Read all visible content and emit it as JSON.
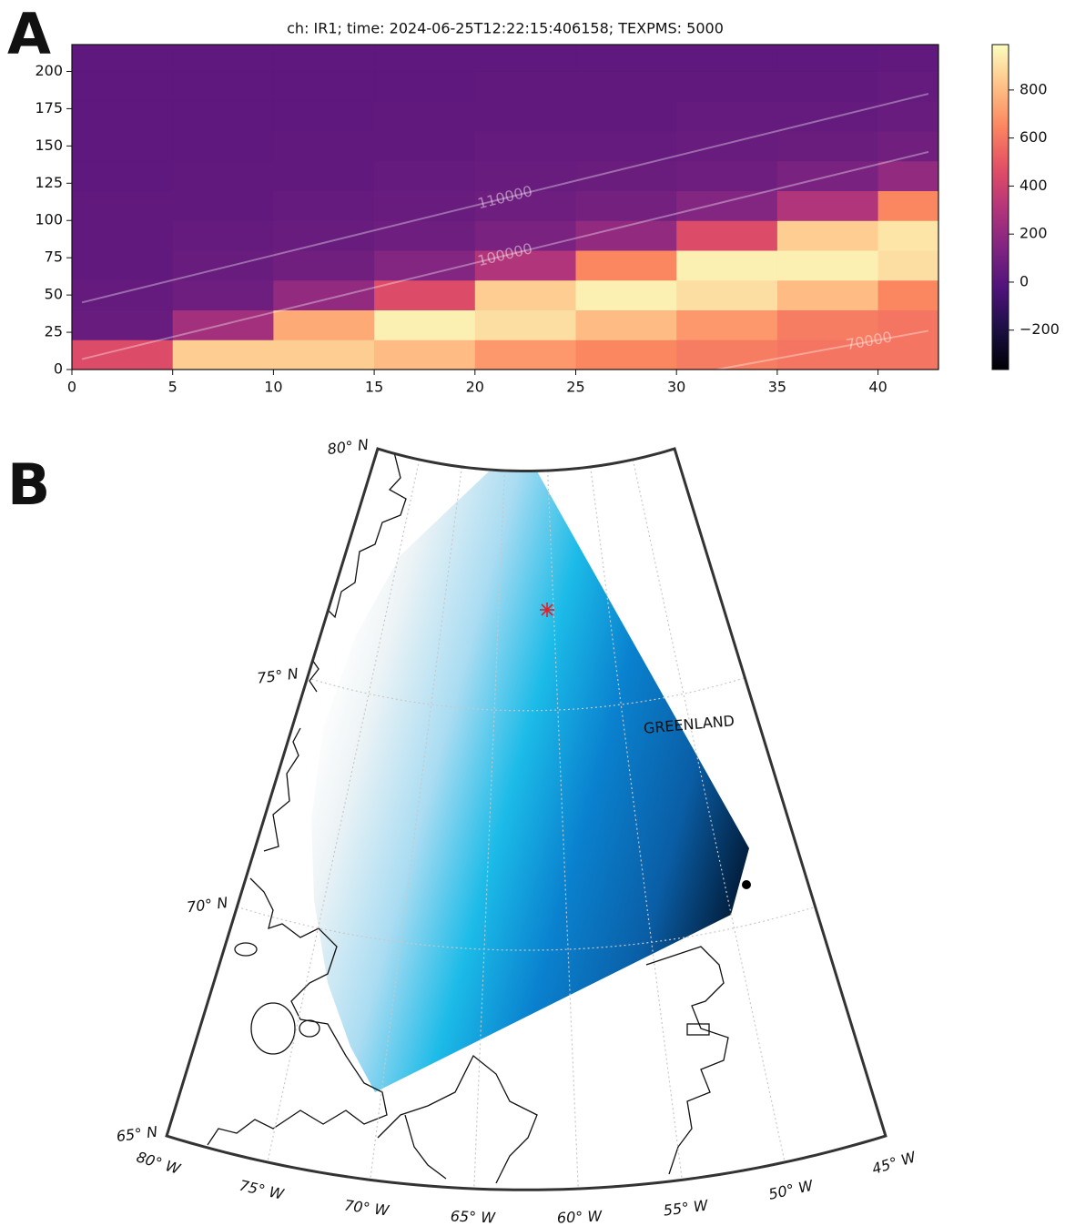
{
  "chart_data": [
    {
      "type": "heatmap",
      "panel_label": "A",
      "title": "ch: IR1; time: 2024-06-25T12:22:15:406158; TEXPMS: 5000",
      "colormap": "magma",
      "x_edges": [
        0,
        5,
        10,
        15,
        20,
        25,
        30,
        35,
        40,
        43
      ],
      "y_edges": [
        0,
        20,
        40,
        60,
        80,
        100,
        120,
        140,
        160,
        180,
        200,
        218
      ],
      "z": [
        [
          450,
          850,
          850,
          800,
          700,
          650,
          620,
          600,
          600
        ],
        [
          60,
          250,
          750,
          950,
          900,
          800,
          700,
          620,
          600
        ],
        [
          50,
          80,
          200,
          450,
          850,
          950,
          900,
          800,
          650
        ],
        [
          40,
          60,
          90,
          150,
          300,
          650,
          950,
          950,
          900
        ],
        [
          40,
          50,
          60,
          80,
          120,
          200,
          450,
          850,
          920
        ],
        [
          40,
          40,
          50,
          60,
          80,
          100,
          150,
          300,
          650
        ],
        [
          30,
          40,
          40,
          50,
          60,
          70,
          80,
          120,
          200
        ],
        [
          30,
          30,
          40,
          40,
          50,
          50,
          60,
          70,
          90
        ],
        [
          30,
          30,
          30,
          40,
          40,
          40,
          50,
          50,
          60
        ],
        [
          30,
          30,
          30,
          30,
          40,
          40,
          40,
          40,
          50
        ],
        [
          30,
          30,
          30,
          30,
          30,
          30,
          30,
          30,
          40
        ]
      ],
      "xlim": [
        0,
        43
      ],
      "xticks": [
        0,
        5,
        10,
        15,
        20,
        25,
        30,
        35,
        40
      ],
      "ylim": [
        0,
        218
      ],
      "yticks": [
        0,
        25,
        50,
        75,
        100,
        125,
        150,
        175,
        200
      ],
      "clim": [
        -364,
        989
      ],
      "cticks": [
        {
          "value": -200,
          "label": "−200"
        },
        0,
        200,
        400,
        600,
        800
      ],
      "contours": [
        {
          "label": "110000",
          "x": [
            0.5,
            42.5
          ],
          "y": [
            45,
            185
          ]
        },
        {
          "label": "100000",
          "x": [
            0.5,
            42.5
          ],
          "y": [
            7,
            146
          ]
        },
        {
          "label": "70000",
          "x": [
            32,
            42.5
          ],
          "y": [
            0,
            26
          ]
        }
      ]
    },
    {
      "type": "map",
      "panel_label": "B",
      "lat_lim": [
        65,
        80
      ],
      "lon_lim": [
        -80,
        -45
      ],
      "lat_ticks": [
        {
          "value": 80,
          "label": "80° N"
        },
        {
          "value": 75,
          "label": "75° N"
        },
        {
          "value": 70,
          "label": "70° N"
        },
        {
          "value": 65,
          "label": "65° N"
        }
      ],
      "lon_ticks": [
        {
          "value": -80,
          "label": "80° W"
        },
        {
          "value": -75,
          "label": "75° W"
        },
        {
          "value": -70,
          "label": "70° W"
        },
        {
          "value": -65,
          "label": "65° W"
        },
        {
          "value": -60,
          "label": "60° W"
        },
        {
          "value": -55,
          "label": "55° W"
        },
        {
          "value": -50,
          "label": "50° W"
        },
        {
          "value": -45,
          "label": "45° W"
        }
      ],
      "annotation": "GREENLAND"
    }
  ]
}
